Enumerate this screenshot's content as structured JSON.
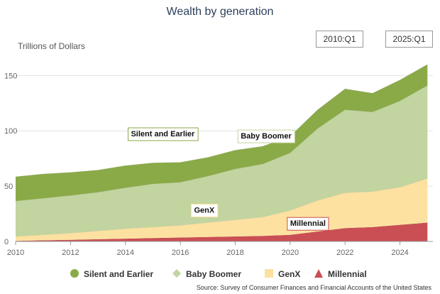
{
  "chart_data": {
    "type": "area",
    "stacked": true,
    "title": "Wealth by generation",
    "ylabel": "Trillions of Dollars",
    "xlabel": "",
    "xlim": [
      2010,
      2025.2
    ],
    "ylim": [
      0,
      165
    ],
    "x_ticks": [
      2010,
      2012,
      2014,
      2016,
      2018,
      2020,
      2022,
      2024
    ],
    "y_ticks": [
      0,
      50,
      100,
      150
    ],
    "grid": "horizontal",
    "legend_position": "bottom",
    "range_selector": {
      "start": "2010:Q1",
      "end": "2025:Q1"
    },
    "source": "Source: Survey of Consumer Finances and Financial Accounts of the United States",
    "x": [
      2010,
      2011,
      2012,
      2013,
      2014,
      2015,
      2016,
      2017,
      2018,
      2019,
      2020,
      2021,
      2022,
      2023,
      2024,
      2025
    ],
    "series": [
      {
        "name": "Millennial",
        "color": "#c94f54",
        "values": [
          0.5,
          1,
          1.5,
          2,
          2.5,
          3,
          3.5,
          4,
          4.5,
          5,
          6,
          9,
          12,
          13,
          15,
          17
        ]
      },
      {
        "name": "GenX",
        "color": "#fde1a1",
        "values": [
          4,
          5,
          6,
          7.5,
          9,
          10,
          11,
          13,
          15,
          17,
          22,
          28,
          32,
          32,
          34,
          40
        ]
      },
      {
        "name": "Baby Boomer",
        "color": "#c2d4a0",
        "values": [
          32,
          33,
          34,
          35,
          37,
          39,
          39,
          42,
          46,
          48,
          52,
          65,
          75,
          72,
          78,
          84
        ]
      },
      {
        "name": "Silent and Earlier",
        "color": "#8aaa48",
        "values": [
          22,
          22,
          21,
          20,
          20,
          19,
          18,
          17,
          17,
          16,
          15,
          17,
          19,
          17,
          19,
          19
        ]
      }
    ],
    "annotations": [
      {
        "text": "Silent and Earlier",
        "x": 2014.2,
        "y": 95,
        "boxed": true,
        "border": "#8aaa48"
      },
      {
        "text": "Baby Boomer",
        "x": 2018.2,
        "y": 93,
        "boxed": true,
        "border": "#c2d4a0"
      },
      {
        "text": "GenX",
        "x": 2016.5,
        "y": 26,
        "boxed": true,
        "border": "#fde1a1"
      },
      {
        "text": "Millennial",
        "x": 2020,
        "y": 14,
        "boxed": true,
        "border": "#c94f54"
      }
    ],
    "legend": [
      {
        "name": "Silent and Earlier",
        "color": "#8aaa48",
        "marker": "circle"
      },
      {
        "name": "Baby Boomer",
        "color": "#c2d4a0",
        "marker": "diamond"
      },
      {
        "name": "GenX",
        "color": "#fde1a1",
        "marker": "square"
      },
      {
        "name": "Millennial",
        "color": "#c94f54",
        "marker": "triangle"
      }
    ]
  }
}
